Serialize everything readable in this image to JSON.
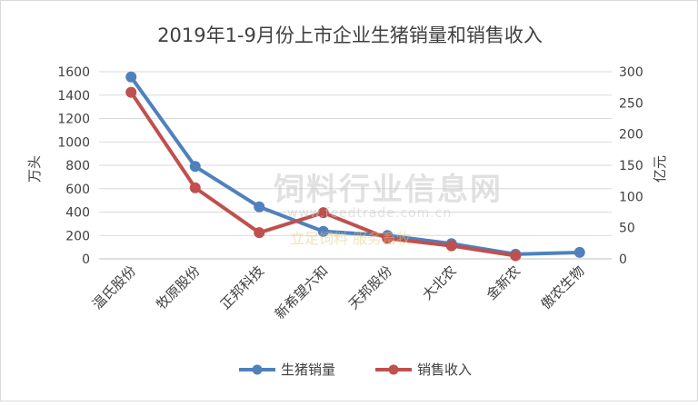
{
  "chart_data": {
    "type": "line",
    "title": "2019年1-9月份上市企业生猪销量和销售收入",
    "categories": [
      "温氏股份",
      "牧原股份",
      "正邦科技",
      "新希望六和",
      "天邦股份",
      "大北农",
      "金新农",
      "傲农生物"
    ],
    "left_axis": {
      "label": "万头",
      "ticks": [
        0,
        200,
        400,
        600,
        800,
        1000,
        1200,
        1400,
        1600
      ],
      "ylim": [
        0,
        1600
      ]
    },
    "right_axis": {
      "label": "亿元",
      "ticks": [
        0,
        50,
        100,
        150,
        200,
        250,
        300
      ],
      "ylim": [
        0,
        300
      ]
    },
    "series": [
      {
        "name": "生猪销量",
        "axis": "left",
        "color": "#4f81bd",
        "values": [
          1555,
          790,
          445,
          235,
          200,
          130,
          40,
          55
        ]
      },
      {
        "name": "销售收入",
        "axis": "right",
        "color": "#c0504d",
        "values": [
          267,
          114,
          42,
          74,
          33,
          21,
          5,
          null
        ]
      }
    ],
    "legend_position": "bottom",
    "grid": "horizontal"
  },
  "watermark": {
    "title": "饲料行业信息网",
    "url": "www.feedtrade.com.cn",
    "slogan": "立足饲料 服务畜牧"
  }
}
